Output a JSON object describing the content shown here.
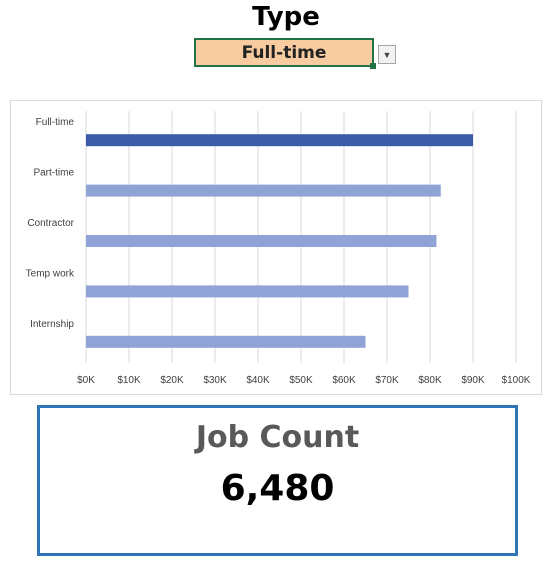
{
  "header": {
    "title": "Type"
  },
  "filter": {
    "selected": "Full-time",
    "button_icon": "dropdown-arrow"
  },
  "chart_data": {
    "type": "bar",
    "orientation": "horizontal",
    "categories": [
      "Full-time",
      "Part-time",
      "Contractor",
      "Temp work",
      "Internship"
    ],
    "values": [
      90000,
      82500,
      81500,
      75000,
      65000
    ],
    "highlighted": "Full-time",
    "xlim": [
      0,
      100000
    ],
    "xticks": [
      "$0K",
      "$10K",
      "$20K",
      "$30K",
      "$40K",
      "$50K",
      "$60K",
      "$70K",
      "$80K",
      "$90K",
      "$100K"
    ],
    "grid": "vertical",
    "colors": {
      "highlight": "#3b5ba9",
      "default": "#8fa3d6",
      "grid": "#d9d9d9"
    }
  },
  "kpi": {
    "label": "Job Count",
    "value": "6,480"
  }
}
